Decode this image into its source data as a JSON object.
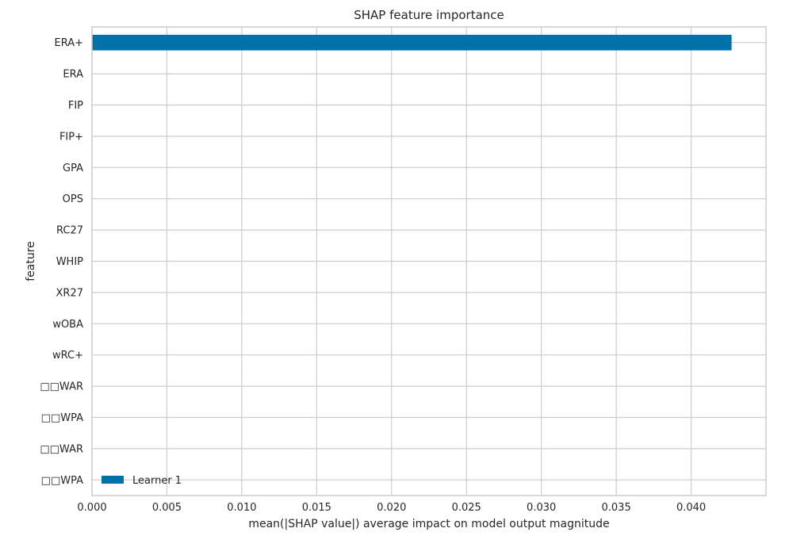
{
  "chart_data": {
    "type": "bar",
    "orientation": "horizontal",
    "title": "SHAP feature importance",
    "xlabel": "mean(|SHAP value|) average impact on model output magnitude",
    "ylabel": "feature",
    "categories": [
      "ERA+",
      "ERA",
      "FIP",
      "FIP+",
      "GPA",
      "OPS",
      "RC27",
      "WHIP",
      "XR27",
      "wOBA",
      "wRC+",
      "□□WAR",
      "□□WPA",
      "□□WAR",
      "□□WPA"
    ],
    "series": [
      {
        "name": "Learner 1",
        "color": "#0072a8",
        "values": [
          0.0427,
          0,
          0,
          0,
          0,
          0,
          0,
          0,
          0,
          0,
          0,
          0,
          0,
          0,
          0
        ]
      }
    ],
    "xlim": [
      0,
      0.045
    ],
    "xticks": [
      0.0,
      0.005,
      0.01,
      0.015,
      0.02,
      0.025,
      0.03,
      0.035,
      0.04
    ],
    "xtick_labels": [
      "0.000",
      "0.005",
      "0.010",
      "0.015",
      "0.020",
      "0.025",
      "0.030",
      "0.035",
      "0.040"
    ],
    "grid": true,
    "legend": {
      "position": "lower-left",
      "entries": [
        "Learner 1"
      ]
    },
    "colors": {
      "grid": "#cccccc",
      "frame": "#cccccc",
      "bar": "#0072a8"
    }
  }
}
